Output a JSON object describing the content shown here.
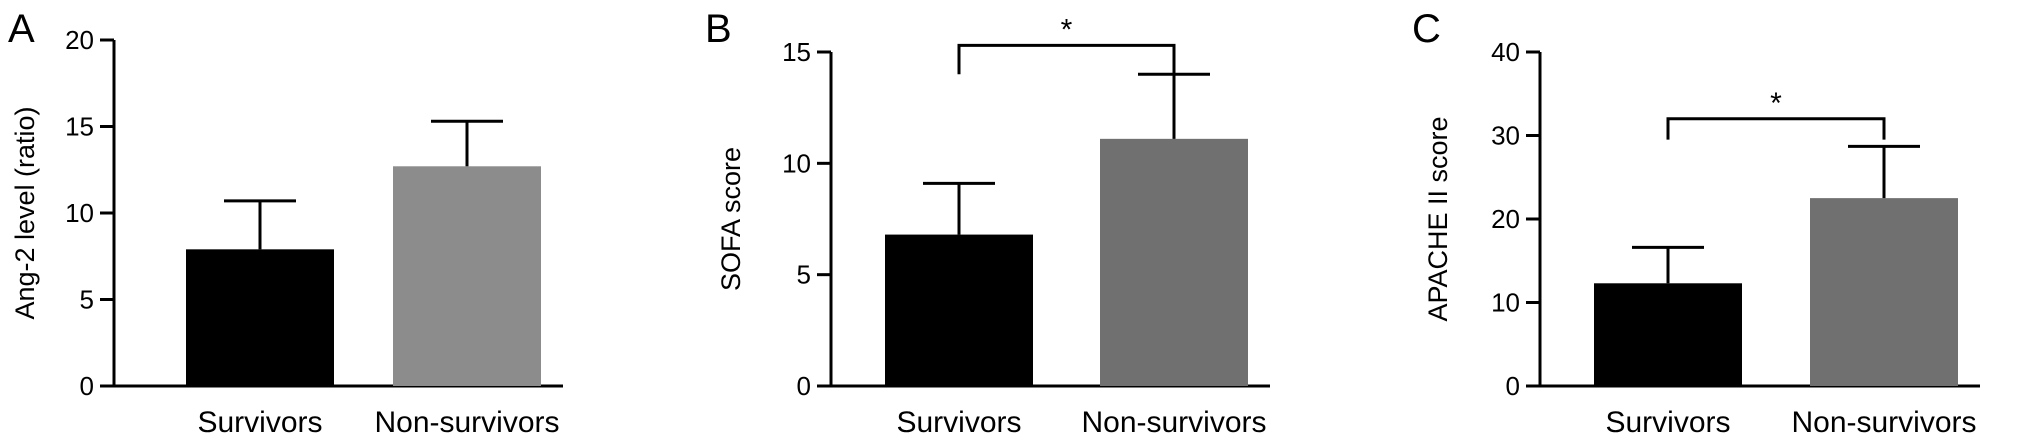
{
  "colors": {
    "survivors": "#000000",
    "non_survivors_A": "#8c8c8c",
    "non_survivors_BC": "#707070",
    "axis": "#000000"
  },
  "chart_data": [
    {
      "panel": "A",
      "type": "bar",
      "categories": [
        "Survivors",
        "Non-survivors"
      ],
      "values": [
        7.9,
        12.7
      ],
      "errors": [
        2.8,
        2.6
      ],
      "ylabel": "Ang-2 level (ratio)",
      "ylim": [
        0,
        20
      ],
      "yticks": [
        0,
        5,
        10,
        15,
        20
      ],
      "yticks_labels": [
        "0",
        "5",
        "10",
        "15",
        "20"
      ],
      "bar_colors": [
        "#000000",
        "#8c8c8c"
      ],
      "significance": null,
      "grid": false,
      "legend": "none"
    },
    {
      "panel": "B",
      "type": "bar",
      "categories": [
        "Survivors",
        "Non-survivors"
      ],
      "values": [
        6.8,
        11.1
      ],
      "errors": [
        2.3,
        2.9
      ],
      "ylabel": "SOFA score",
      "ylim": [
        0,
        15
      ],
      "yticks": [
        0,
        5,
        10,
        15
      ],
      "yticks_labels": [
        "0",
        "5",
        "10",
        "15"
      ],
      "bar_colors": [
        "#000000",
        "#707070"
      ],
      "significance": {
        "label": "*",
        "bracket_y": 15.3,
        "drop_to": 14.0
      },
      "grid": false,
      "legend": "none"
    },
    {
      "panel": "C",
      "type": "bar",
      "categories": [
        "Survivors",
        "Non-survivors"
      ],
      "values": [
        12.3,
        22.5
      ],
      "errors": [
        4.3,
        6.2
      ],
      "ylabel": "APACHE II score",
      "ylim": [
        0,
        40
      ],
      "yticks": [
        0,
        10,
        20,
        30,
        40
      ],
      "yticks_labels": [
        "0",
        "10",
        "20",
        "30",
        "40"
      ],
      "bar_colors": [
        "#000000",
        "#707070"
      ],
      "significance": {
        "label": "*",
        "bracket_y": 32.0,
        "drop_to": 29.5
      },
      "grid": false,
      "legend": "none"
    }
  ]
}
